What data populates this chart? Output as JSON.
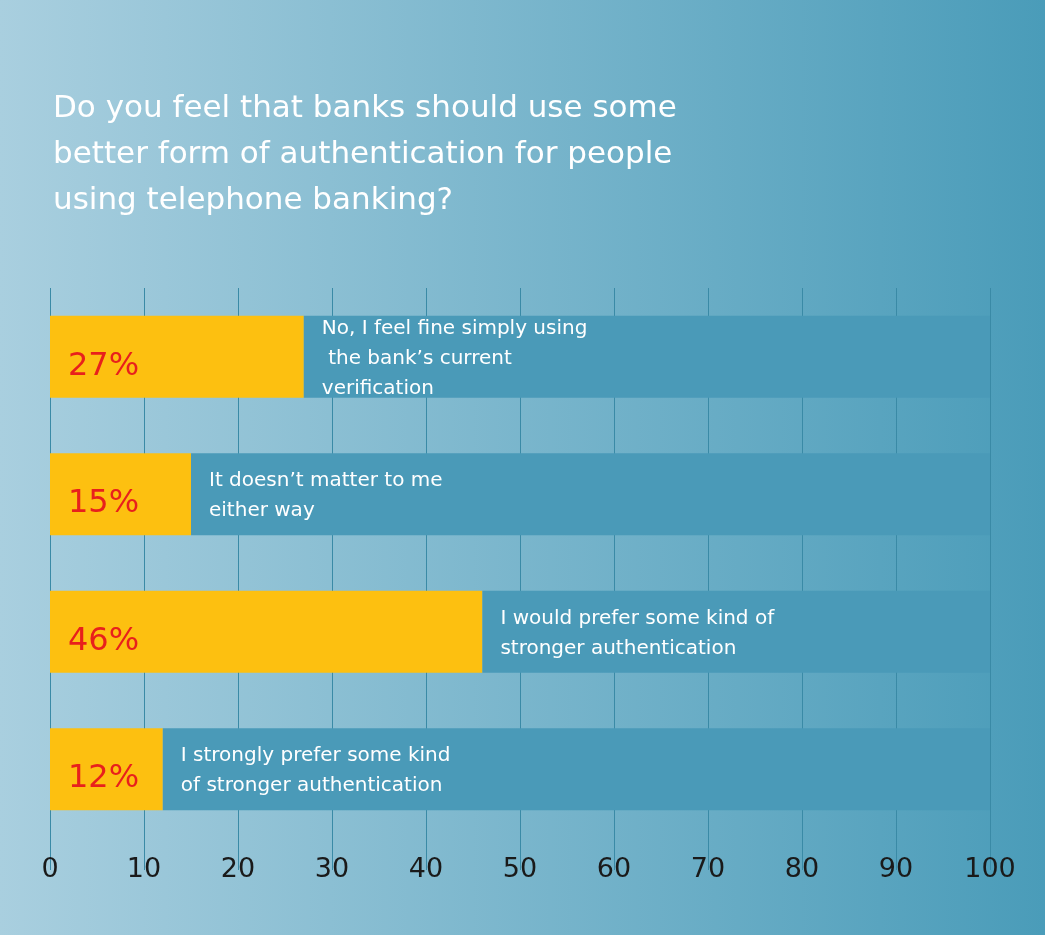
{
  "chart_data": {
    "type": "bar",
    "orientation": "horizontal",
    "stacked": true,
    "title": "Do you feel that banks should use some better form of authentication for people using telephone banking?",
    "categories": [
      "No, I feel fine simply using the bank’s current verification",
      "It doesn’t matter to me either way",
      "I would prefer some kind of stronger authentication",
      "I strongly prefer some kind of stronger authentication"
    ],
    "series": [
      {
        "color": "#fdc010",
        "values": [
          27,
          15,
          46,
          12
        ],
        "value_labels": [
          "27%",
          "15%",
          "46%",
          "12%"
        ]
      },
      {
        "color": "#4a9ab8",
        "values": [
          73,
          85,
          54,
          88
        ]
      }
    ],
    "xlim": [
      0,
      100
    ],
    "xticks": [
      0,
      10,
      20,
      30,
      40,
      50,
      60,
      70,
      80,
      90,
      100
    ],
    "grid": "x"
  }
}
